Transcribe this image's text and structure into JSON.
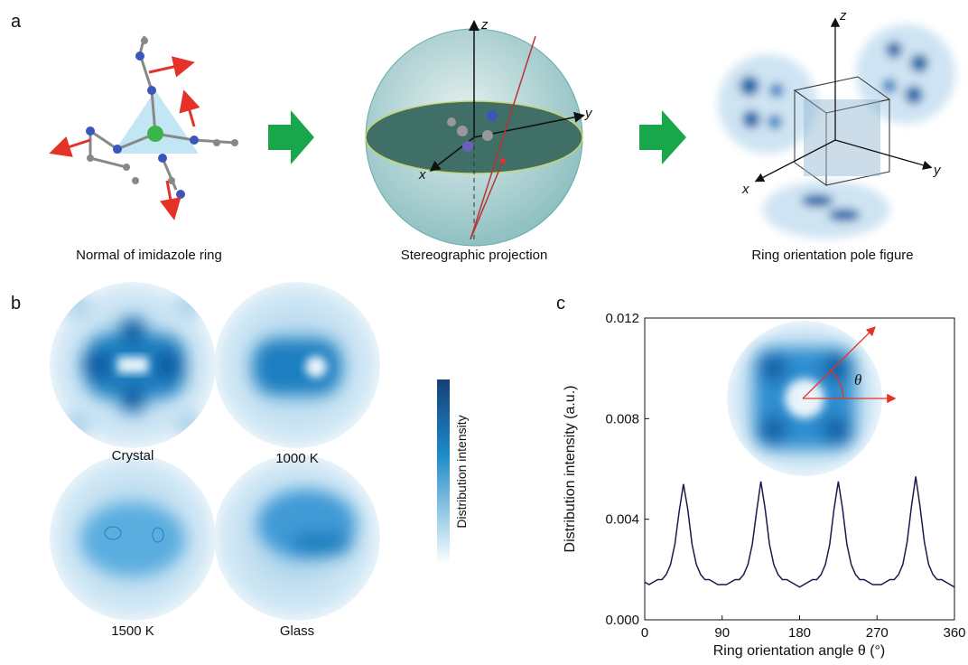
{
  "panel_a": {
    "label": "a",
    "captions": [
      "Normal of imidazole ring",
      "Stereographic projection",
      "Ring orientation pole figure"
    ],
    "sphere_axes": [
      "z",
      "y",
      "x"
    ],
    "cube_axes": [
      "z",
      "y",
      "x"
    ]
  },
  "panel_b": {
    "label": "b",
    "maps": [
      "Crystal",
      "1000 K",
      "1500 K",
      "Glass"
    ],
    "colorbar_label": "Distribution intensity"
  },
  "panel_c": {
    "label": "c",
    "inset_angle": "θ"
  },
  "chart_data": {
    "type": "line",
    "xlabel": "Ring orientation angle θ (°)",
    "ylabel": "Distribution intensity (a.u.)",
    "x": [
      0,
      5,
      10,
      15,
      20,
      25,
      30,
      35,
      40,
      45,
      50,
      55,
      60,
      65,
      70,
      75,
      80,
      85,
      90,
      95,
      100,
      105,
      110,
      115,
      120,
      125,
      130,
      135,
      140,
      145,
      150,
      155,
      160,
      165,
      170,
      175,
      180,
      185,
      190,
      195,
      200,
      205,
      210,
      215,
      220,
      225,
      230,
      235,
      240,
      245,
      250,
      255,
      260,
      265,
      270,
      275,
      280,
      285,
      290,
      295,
      300,
      305,
      310,
      315,
      320,
      325,
      330,
      335,
      340,
      345,
      350,
      355,
      360
    ],
    "series": [
      {
        "color": "#1a1a4e",
        "values": [
          0.0015,
          0.0014,
          0.0015,
          0.0016,
          0.0016,
          0.0018,
          0.0022,
          0.003,
          0.0043,
          0.0054,
          0.0044,
          0.003,
          0.0022,
          0.0018,
          0.0016,
          0.0016,
          0.0015,
          0.0014,
          0.0014,
          0.0014,
          0.0015,
          0.0016,
          0.0016,
          0.0018,
          0.0022,
          0.003,
          0.0043,
          0.0055,
          0.0044,
          0.003,
          0.0022,
          0.0018,
          0.0016,
          0.0016,
          0.0015,
          0.0014,
          0.0013,
          0.0014,
          0.0015,
          0.0016,
          0.0016,
          0.0018,
          0.0022,
          0.003,
          0.0044,
          0.0055,
          0.0044,
          0.003,
          0.0022,
          0.0018,
          0.0016,
          0.0016,
          0.0015,
          0.0014,
          0.0014,
          0.0014,
          0.0015,
          0.0016,
          0.0016,
          0.0018,
          0.0022,
          0.0031,
          0.0045,
          0.0057,
          0.0045,
          0.0031,
          0.0022,
          0.0018,
          0.0016,
          0.0016,
          0.0015,
          0.0014,
          0.0013
        ]
      }
    ],
    "xlim": [
      0,
      360
    ],
    "ylim": [
      0,
      0.012
    ],
    "xticks": [
      0,
      90,
      180,
      270,
      360
    ],
    "yticks": [
      {
        "value": 0,
        "label": "0.000"
      },
      0.004,
      0.008,
      0.012
    ]
  }
}
